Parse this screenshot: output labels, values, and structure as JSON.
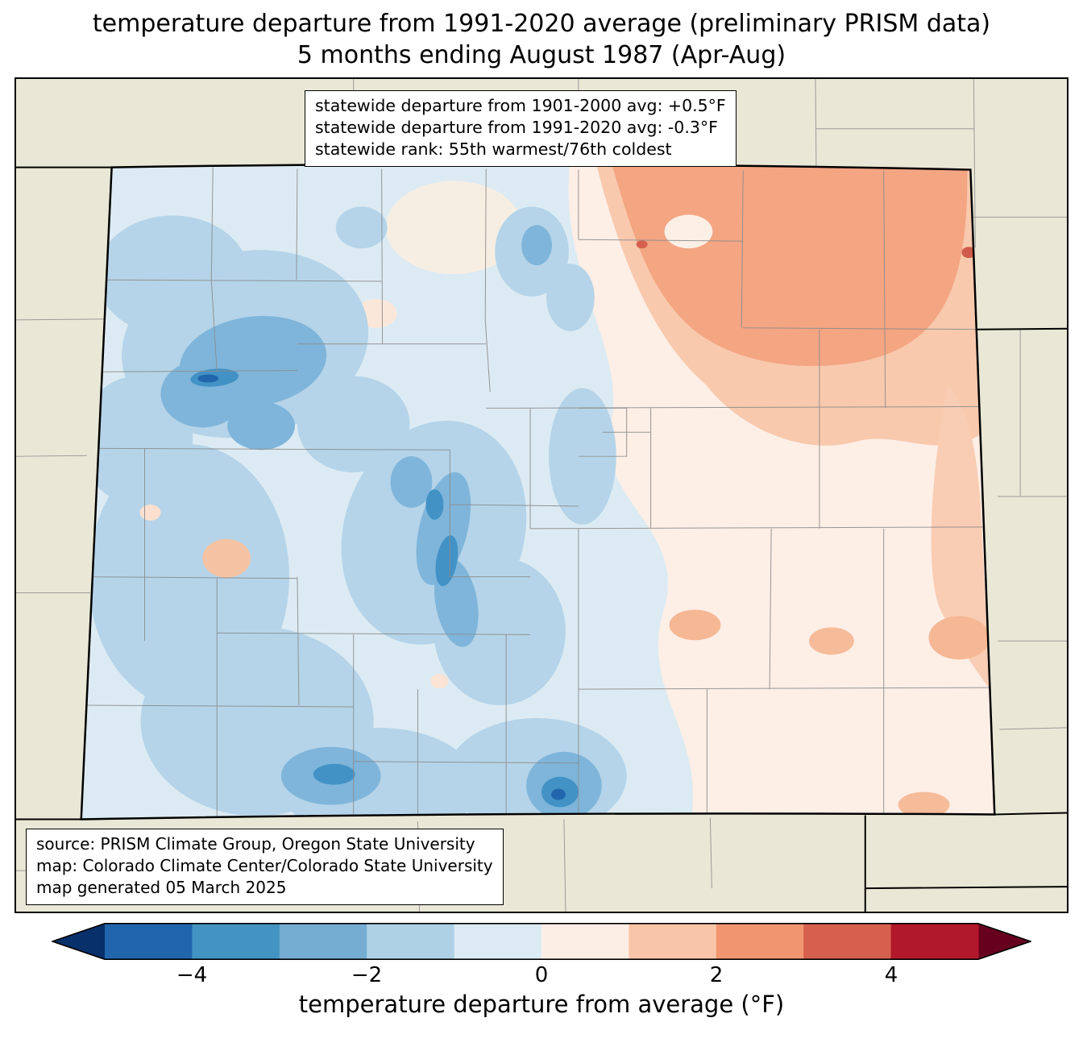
{
  "title": {
    "line1": "temperature departure from 1991-2020 average (preliminary PRISM data)",
    "line2": "5 months ending August 1987 (Apr-Aug)"
  },
  "stats_box": {
    "lines": [
      "statewide departure from 1901-2000 avg: +0.5°F",
      "statewide departure from 1991-2020 avg: -0.3°F",
      "statewide rank: 55th warmest/76th coldest"
    ]
  },
  "source_box": {
    "lines": [
      "source: PRISM Climate Group, Oregon State University",
      "map: Colorado Climate Center/Colorado State University",
      "map generated 05 March 2025"
    ]
  },
  "map": {
    "region": "Colorado",
    "data_type": "temperature departure (°F)",
    "surround_color": "#e9e8d6",
    "state_border_color": "#000000",
    "county_line_color": "#8c8c8c"
  },
  "colorbar": {
    "label": "temperature departure from average (°F)",
    "ticks": [
      "−4",
      "−2",
      "0",
      "2",
      "4"
    ],
    "tick_values": [
      -4,
      -2,
      0,
      2,
      4
    ],
    "range": [
      -5,
      5
    ],
    "segment_colors": [
      "#2166ac",
      "#4393c3",
      "#74add1",
      "#aed1e6",
      "#dcebf3",
      "#fdeee5",
      "#f9c5a9",
      "#f0956f",
      "#d6604d",
      "#b2182b"
    ],
    "under_color": "#08306b",
    "over_color": "#67001f"
  }
}
